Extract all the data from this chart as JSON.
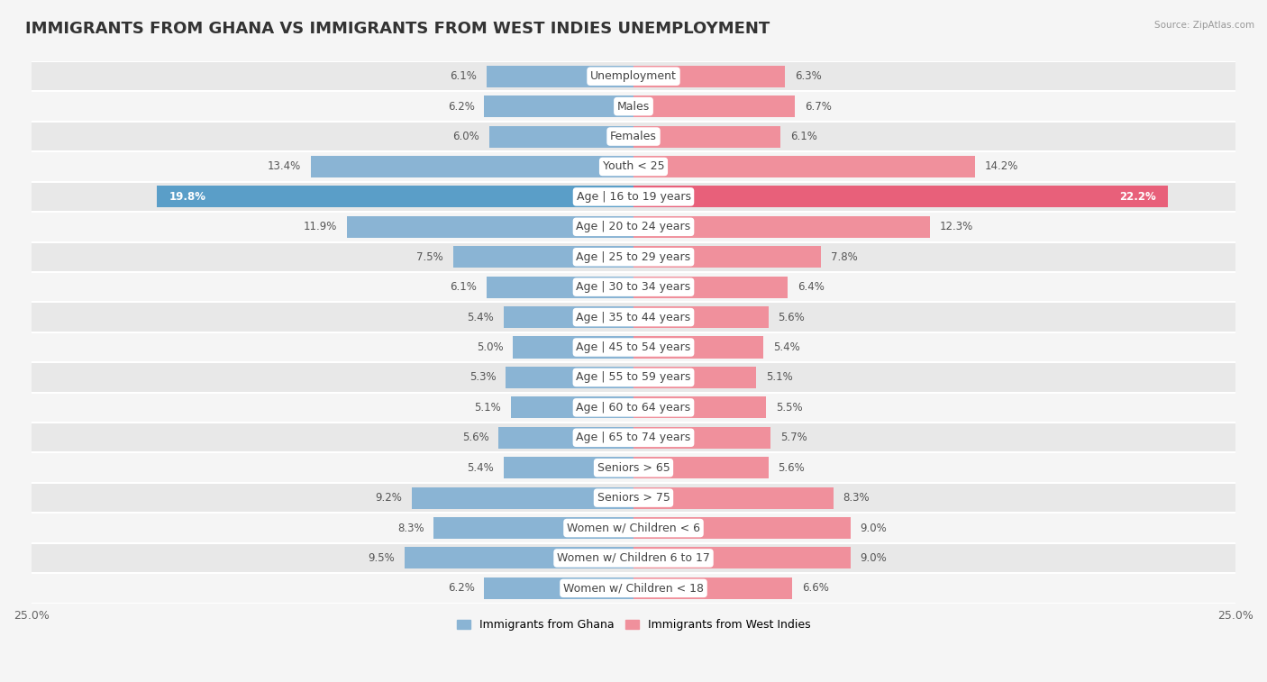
{
  "title": "IMMIGRANTS FROM GHANA VS IMMIGRANTS FROM WEST INDIES UNEMPLOYMENT",
  "source": "Source: ZipAtlas.com",
  "categories": [
    "Unemployment",
    "Males",
    "Females",
    "Youth < 25",
    "Age | 16 to 19 years",
    "Age | 20 to 24 years",
    "Age | 25 to 29 years",
    "Age | 30 to 34 years",
    "Age | 35 to 44 years",
    "Age | 45 to 54 years",
    "Age | 55 to 59 years",
    "Age | 60 to 64 years",
    "Age | 65 to 74 years",
    "Seniors > 65",
    "Seniors > 75",
    "Women w/ Children < 6",
    "Women w/ Children 6 to 17",
    "Women w/ Children < 18"
  ],
  "ghana_values": [
    6.1,
    6.2,
    6.0,
    13.4,
    19.8,
    11.9,
    7.5,
    6.1,
    5.4,
    5.0,
    5.3,
    5.1,
    5.6,
    5.4,
    9.2,
    8.3,
    9.5,
    6.2
  ],
  "westindies_values": [
    6.3,
    6.7,
    6.1,
    14.2,
    22.2,
    12.3,
    7.8,
    6.4,
    5.6,
    5.4,
    5.1,
    5.5,
    5.7,
    5.6,
    8.3,
    9.0,
    9.0,
    6.6
  ],
  "ghana_color": "#8ab4d4",
  "westindies_color": "#f0909c",
  "ghana_highlight_color": "#5a9ec8",
  "westindies_highlight_color": "#e8607a",
  "row_color_even": "#e8e8e8",
  "row_color_odd": "#f5f5f5",
  "background_color": "#f5f5f5",
  "xlim": 25.0,
  "ghana_label": "Immigrants from Ghana",
  "westindies_label": "Immigrants from West Indies",
  "title_fontsize": 13,
  "label_fontsize": 9,
  "value_fontsize": 8.5,
  "bar_height": 0.72
}
